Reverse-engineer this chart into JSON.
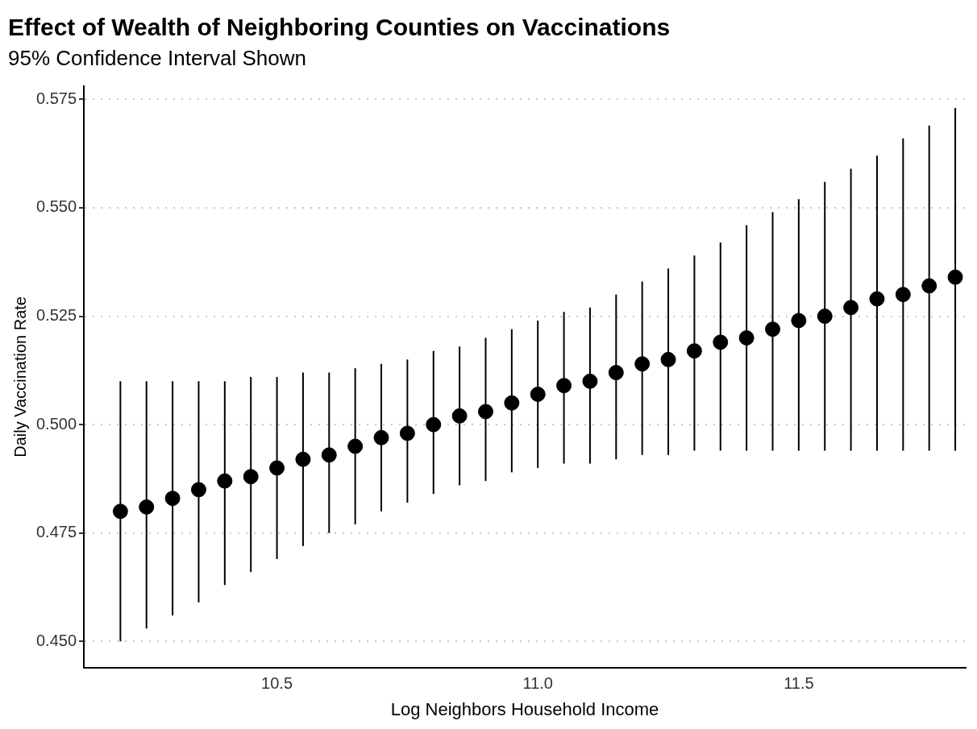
{
  "chart_data": {
    "type": "scatter",
    "title": "Effect of Wealth of Neighboring Counties on Vaccinations",
    "subtitle": "95% Confidence Interval Shown",
    "xlabel": "Log Neighbors Household Income",
    "ylabel": "Daily Vaccination Rate",
    "x": [
      10.2,
      10.25,
      10.3,
      10.35,
      10.4,
      10.45,
      10.5,
      10.55,
      10.6,
      10.65,
      10.7,
      10.75,
      10.8,
      10.85,
      10.9,
      10.95,
      11.0,
      11.05,
      11.1,
      11.15,
      11.2,
      11.25,
      11.3,
      11.35,
      11.4,
      11.45,
      11.5,
      11.55,
      11.6,
      11.65,
      11.7,
      11.75,
      11.8
    ],
    "series": [
      {
        "color": "#000000",
        "values": [
          0.48,
          0.481,
          0.483,
          0.485,
          0.487,
          0.488,
          0.49,
          0.492,
          0.493,
          0.495,
          0.497,
          0.498,
          0.5,
          0.502,
          0.503,
          0.505,
          0.507,
          0.509,
          0.51,
          0.512,
          0.514,
          0.515,
          0.517,
          0.519,
          0.52,
          0.522,
          0.524,
          0.525,
          0.527,
          0.529,
          0.53,
          0.532,
          0.534
        ],
        "errors": [
          [
            0.45,
            0.51
          ],
          [
            0.453,
            0.51
          ],
          [
            0.456,
            0.51
          ],
          [
            0.459,
            0.51
          ],
          [
            0.463,
            0.51
          ],
          [
            0.466,
            0.511
          ],
          [
            0.469,
            0.511
          ],
          [
            0.472,
            0.512
          ],
          [
            0.475,
            0.512
          ],
          [
            0.477,
            0.513
          ],
          [
            0.48,
            0.514
          ],
          [
            0.482,
            0.515
          ],
          [
            0.484,
            0.517
          ],
          [
            0.486,
            0.518
          ],
          [
            0.487,
            0.52
          ],
          [
            0.489,
            0.522
          ],
          [
            0.49,
            0.524
          ],
          [
            0.491,
            0.526
          ],
          [
            0.491,
            0.527
          ],
          [
            0.492,
            0.53
          ],
          [
            0.493,
            0.533
          ],
          [
            0.493,
            0.536
          ],
          [
            0.494,
            0.539
          ],
          [
            0.494,
            0.542
          ],
          [
            0.494,
            0.546
          ],
          [
            0.494,
            0.549
          ],
          [
            0.494,
            0.552
          ],
          [
            0.494,
            0.556
          ],
          [
            0.494,
            0.559
          ],
          [
            0.494,
            0.562
          ],
          [
            0.494,
            0.566
          ],
          [
            0.494,
            0.569
          ],
          [
            0.494,
            0.573
          ]
        ]
      }
    ],
    "xlim": [
      10.13,
      11.82
    ],
    "xticks": [
      10.5,
      {
        "value": 11.0,
        "label": "11.0"
      },
      11.5
    ],
    "ylim": [
      0.444,
      0.578
    ],
    "yticks": [
      {
        "value": 0.45,
        "label": "0.450"
      },
      0.475,
      {
        "value": 0.5,
        "label": "0.500"
      },
      0.525,
      {
        "value": 0.55,
        "label": "0.550"
      },
      0.575
    ],
    "grid": "y",
    "legend": false,
    "marker": "circle"
  }
}
